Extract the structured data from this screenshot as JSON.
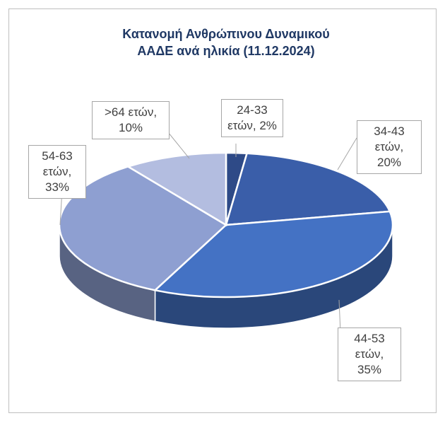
{
  "chart_data": {
    "type": "pie3d",
    "title": "Κατανομή Ανθρώπινου Δυναμικού ΑΑΔΕ ανά ηλικία (11.12.2024)",
    "categories": [
      "24-33 ετών",
      "34-43 ετών",
      "44-53 ετών",
      "54-63 ετών",
      ">64 ετών"
    ],
    "values": [
      2,
      20,
      35,
      33,
      10
    ],
    "value_labels": [
      "2%",
      "20%",
      "35%",
      "33%",
      "10%"
    ],
    "label_separator": ", ",
    "colors": [
      "#2e4a87",
      "#3a5ea9",
      "#4472c4",
      "#8e9fd1",
      "#b3bde0"
    ]
  }
}
